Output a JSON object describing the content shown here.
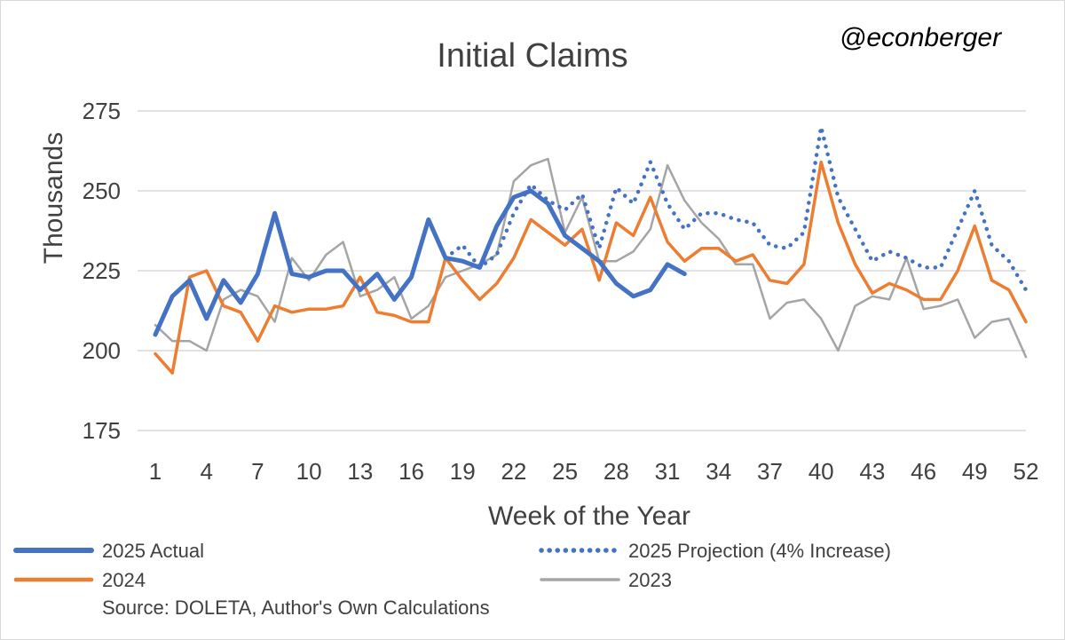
{
  "chart_data": {
    "type": "line",
    "title": "Initial Claims",
    "handle": "@econberger",
    "xlabel": "Week of the Year",
    "ylabel": "Thousands",
    "ylim": [
      175,
      275
    ],
    "yticks": [
      175,
      200,
      225,
      250,
      275
    ],
    "xlim": [
      1,
      52
    ],
    "xticks": [
      1,
      4,
      7,
      10,
      13,
      16,
      19,
      22,
      25,
      28,
      31,
      34,
      37,
      40,
      43,
      46,
      49,
      52
    ],
    "grid": true,
    "legend_position": "bottom",
    "source": "Source: DOLETA, Author's Own Calculations",
    "series": [
      {
        "name": "2025 Actual",
        "color": "#4472c4",
        "style": "solid-thick",
        "x": [
          1,
          2,
          3,
          4,
          5,
          6,
          7,
          8,
          9,
          10,
          11,
          12,
          13,
          14,
          15,
          16,
          17,
          18,
          19,
          20,
          21,
          22,
          23,
          24,
          25,
          26,
          27,
          28,
          29,
          30,
          31,
          32
        ],
        "values": [
          205,
          217,
          222,
          210,
          222,
          215,
          224,
          243,
          224,
          223,
          225,
          225,
          219,
          224,
          216,
          223,
          241,
          229,
          228,
          226,
          239,
          248,
          250,
          246,
          236,
          232,
          228,
          221,
          217,
          219,
          227,
          224
        ]
      },
      {
        "name": "2025 Projection (4% Increase)",
        "color": "#4472c4",
        "style": "dotted",
        "x": [
          18,
          19,
          20,
          21,
          22,
          23,
          24,
          25,
          26,
          27,
          28,
          29,
          30,
          31,
          32,
          33,
          34,
          35,
          36,
          37,
          38,
          39,
          40,
          41,
          42,
          43,
          44,
          45,
          46,
          47,
          48,
          49,
          50,
          51,
          52
        ],
        "values": [
          229,
          233,
          226,
          230,
          243,
          252,
          247,
          244,
          249,
          232,
          251,
          246,
          259,
          246,
          238,
          243,
          243,
          241,
          240,
          233,
          232,
          237,
          270,
          248,
          238,
          228,
          231,
          229,
          226,
          226,
          238,
          250,
          233,
          228,
          219
        ]
      },
      {
        "name": "2024",
        "color": "#ed7d31",
        "style": "solid",
        "x": [
          1,
          2,
          3,
          4,
          5,
          6,
          7,
          8,
          9,
          10,
          11,
          12,
          13,
          14,
          15,
          16,
          17,
          18,
          19,
          20,
          21,
          22,
          23,
          24,
          25,
          26,
          27,
          28,
          29,
          30,
          31,
          32,
          33,
          34,
          35,
          36,
          37,
          38,
          39,
          40,
          41,
          42,
          43,
          44,
          45,
          46,
          47,
          48,
          49,
          50,
          51,
          52
        ],
        "values": [
          199,
          193,
          223,
          225,
          214,
          212,
          203,
          214,
          212,
          213,
          213,
          214,
          223,
          212,
          211,
          209,
          209,
          229,
          222,
          216,
          221,
          229,
          241,
          237,
          233,
          238,
          222,
          240,
          236,
          248,
          234,
          228,
          232,
          232,
          228,
          230,
          222,
          221,
          227,
          259,
          240,
          227,
          218,
          221,
          219,
          216,
          216,
          225,
          239,
          222,
          219,
          209
        ]
      },
      {
        "name": "2023",
        "color": "#a5a5a5",
        "style": "solid-thin",
        "x": [
          1,
          2,
          3,
          4,
          5,
          6,
          7,
          8,
          9,
          10,
          11,
          12,
          13,
          14,
          15,
          16,
          17,
          18,
          19,
          20,
          21,
          22,
          23,
          24,
          25,
          26,
          27,
          28,
          29,
          30,
          31,
          32,
          33,
          34,
          35,
          36,
          37,
          38,
          39,
          40,
          41,
          42,
          43,
          44,
          45,
          46,
          47,
          48,
          49,
          50,
          51,
          52
        ],
        "values": [
          208,
          203,
          203,
          200,
          216,
          219,
          217,
          209,
          229,
          222,
          230,
          234,
          217,
          219,
          223,
          210,
          214,
          223,
          225,
          227,
          230,
          253,
          258,
          260,
          237,
          248,
          228,
          228,
          231,
          238,
          258,
          247,
          240,
          235,
          227,
          227,
          210,
          215,
          216,
          210,
          200,
          214,
          217,
          216,
          229,
          213,
          214,
          216,
          204,
          209,
          210,
          198
        ]
      }
    ]
  }
}
